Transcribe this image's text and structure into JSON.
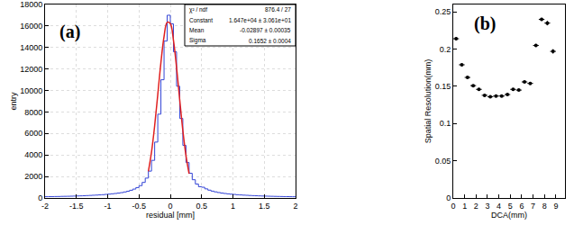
{
  "chart_data": [
    {
      "type": "histogram",
      "panel_label": "(a)",
      "xlabel": "residual [mm]",
      "ylabel": "entry",
      "bins": [
        -2.0,
        -1.95,
        -1.9,
        -1.85,
        -1.8,
        -1.75,
        -1.7,
        -1.65,
        -1.6,
        -1.55,
        -1.5,
        -1.45,
        -1.4,
        -1.35,
        -1.3,
        -1.25,
        -1.2,
        -1.15,
        -1.1,
        -1.05,
        -1.0,
        -0.95,
        -0.9,
        -0.85,
        -0.8,
        -0.75,
        -0.7,
        -0.65,
        -0.6,
        -0.55,
        -0.5,
        -0.45,
        -0.4,
        -0.35,
        -0.3,
        -0.25,
        -0.2,
        -0.15,
        -0.1,
        -0.05,
        0.0,
        0.05,
        0.1,
        0.15,
        0.2,
        0.25,
        0.3,
        0.35,
        0.4,
        0.45,
        0.5,
        0.55,
        0.6,
        0.65,
        0.7,
        0.75,
        0.8,
        0.85,
        0.9,
        0.95,
        1.0,
        1.05,
        1.1,
        1.15,
        1.2,
        1.25,
        1.3,
        1.35,
        1.4,
        1.45,
        1.5,
        1.55,
        1.6,
        1.65,
        1.7,
        1.75,
        1.8,
        1.85,
        1.9,
        1.95,
        2.0
      ],
      "counts": [
        120,
        125,
        130,
        135,
        140,
        150,
        155,
        160,
        170,
        180,
        190,
        200,
        210,
        225,
        240,
        255,
        270,
        290,
        310,
        335,
        360,
        390,
        420,
        460,
        500,
        560,
        630,
        720,
        830,
        970,
        1150,
        1450,
        1850,
        2500,
        3500,
        5200,
        7800,
        11000,
        14600,
        17000,
        16200,
        13600,
        10400,
        7400,
        4900,
        3300,
        2300,
        1700,
        1300,
        1050,
        1000,
        850,
        730,
        640,
        570,
        510,
        460,
        420,
        385,
        355,
        330,
        305,
        285,
        265,
        250,
        235,
        220,
        208,
        196,
        185,
        175,
        165,
        158,
        150,
        143,
        137,
        131,
        125,
        120,
        115
      ],
      "color": "#3344d6",
      "fit": {
        "x": [
          -0.35,
          -0.3,
          -0.25,
          -0.2,
          -0.15,
          -0.1,
          -0.05,
          0.0,
          0.05,
          0.1,
          0.15,
          0.2,
          0.25,
          0.3
        ],
        "values": [
          2480,
          4280,
          6720,
          9630,
          12590,
          15020,
          16340,
          16220,
          14690,
          12130,
          9150,
          6290,
          3940,
          2260
        ],
        "color": "#e02020"
      },
      "stats": [
        {
          "label": "χ² / ndf",
          "value": "876.4 / 27"
        },
        {
          "label": "Constant",
          "value": "1.647e+04 ± 3.061e+01"
        },
        {
          "label": "Mean",
          "value": "-0.02897 ± 0.00035"
        },
        {
          "label": "Sigma",
          "value": "0.1652 ± 0.0004"
        }
      ],
      "xlim": [
        -2,
        2
      ],
      "xticks": [
        -2,
        -1.5,
        -1,
        -0.5,
        0,
        0.5,
        1,
        1.5,
        2
      ],
      "ylim": [
        0,
        18000
      ],
      "yticks": [
        0,
        2000,
        4000,
        6000,
        8000,
        10000,
        12000,
        14000,
        16000,
        18000
      ],
      "grid": true
    },
    {
      "type": "scatter",
      "panel_label": "(b)",
      "xlabel": "DCA(mm)",
      "ylabel": "Spatial Resolution(mm)",
      "x": [
        0.25,
        0.75,
        1.25,
        1.75,
        2.25,
        2.75,
        3.25,
        3.75,
        4.25,
        4.75,
        5.25,
        5.75,
        6.25,
        6.75,
        7.25,
        7.75,
        8.25,
        8.75
      ],
      "values": [
        0.214,
        0.179,
        0.162,
        0.151,
        0.146,
        0.138,
        0.136,
        0.137,
        0.137,
        0.139,
        0.146,
        0.145,
        0.156,
        0.154,
        0.205,
        0.24,
        0.235,
        0.197
      ],
      "x_error": [
        0.25,
        0.25,
        0.25,
        0.25,
        0.25,
        0.25,
        0.25,
        0.25,
        0.25,
        0.25,
        0.25,
        0.25,
        0.25,
        0.25,
        0.25,
        0.25,
        0.25,
        0.25
      ],
      "y_error": [
        0.002,
        0.001,
        0.001,
        0.001,
        0.001,
        0.001,
        0.001,
        0.001,
        0.001,
        0.001,
        0.001,
        0.001,
        0.001,
        0.001,
        0.002,
        0.002,
        0.003,
        0.003
      ],
      "color": "#000000",
      "marker": "circle",
      "xlim": [
        0,
        9.8
      ],
      "xticks": [
        0,
        1,
        2,
        3,
        4,
        5,
        6,
        7,
        8,
        9
      ],
      "ylim": [
        0,
        0.26
      ],
      "yticks": [
        0,
        0.05,
        0.1,
        0.15,
        0.2,
        0.25
      ],
      "grid": false
    }
  ]
}
